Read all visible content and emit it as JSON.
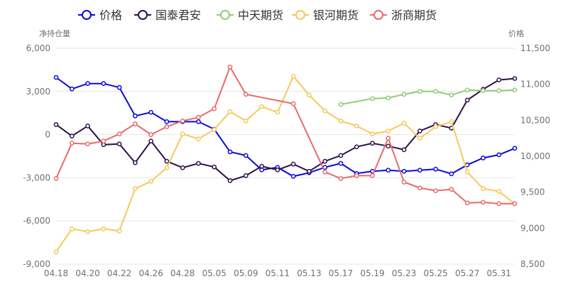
{
  "chart_data": {
    "type": "line",
    "left_axis_title": "净持仓量",
    "right_axis_title": "价格",
    "left_ylim": [
      -9000,
      6000
    ],
    "left_ticks": [
      "-9,000",
      "-6,000",
      "-3,000",
      "0",
      "3,000",
      "6,000"
    ],
    "left_tick_values": [
      -9000,
      -6000,
      -3000,
      0,
      3000,
      6000
    ],
    "right_ylim": [
      8500,
      11500
    ],
    "right_ticks": [
      "8,500",
      "9,000",
      "9,500",
      "10,000",
      "10,500",
      "11,000",
      "11,500"
    ],
    "right_tick_values": [
      8500,
      9000,
      9500,
      10000,
      10500,
      11000,
      11500
    ],
    "x": [
      "04.18",
      "04.19",
      "04.20",
      "04.21",
      "04.22",
      "04.25",
      "04.26",
      "04.27",
      "04.28",
      "04.29",
      "05.05",
      "05.06",
      "05.09",
      "05.10",
      "05.11",
      "05.12",
      "05.13",
      "05.16",
      "05.17",
      "05.18",
      "05.19",
      "05.20",
      "05.23",
      "05.24",
      "05.25",
      "05.26",
      "05.27",
      "05.30",
      "05.31",
      "06.01"
    ],
    "x_tick_labels": [
      "04.18",
      "04.20",
      "04.22",
      "04.26",
      "04.28",
      "05.05",
      "05.09",
      "05.11",
      "05.13",
      "05.17",
      "05.19",
      "05.23",
      "05.25",
      "05.27",
      "05.31"
    ],
    "x_tick_indices": [
      0,
      2,
      4,
      6,
      8,
      10,
      12,
      14,
      16,
      18,
      20,
      22,
      24,
      26,
      28
    ],
    "grid": true,
    "legend_position": "top",
    "series": [
      {
        "name": "价格",
        "axis": "right",
        "color": "#0a0ad8",
        "values": [
          11095,
          10935,
          11010,
          11010,
          10955,
          10560,
          10610,
          10480,
          10480,
          10480,
          10375,
          10060,
          10010,
          9810,
          9845,
          9720,
          9770,
          9845,
          9900,
          9760,
          9790,
          9805,
          9790,
          9805,
          9820,
          9755,
          9880,
          9975,
          10020,
          10110
        ]
      },
      {
        "name": "国泰君安",
        "axis": "left",
        "color": "#2e1049",
        "values": [
          700,
          -100,
          600,
          -700,
          -650,
          -1950,
          -450,
          -1850,
          -2300,
          -2000,
          -2250,
          -3200,
          -2850,
          -2200,
          -2450,
          -2050,
          -2550,
          -1850,
          -1450,
          -850,
          -600,
          -800,
          -1050,
          250,
          700,
          450,
          2400,
          3150,
          3800,
          3900
        ]
      },
      {
        "name": "中天期货",
        "axis": "left",
        "color": "#91cc75",
        "values": [
          null,
          null,
          null,
          null,
          null,
          null,
          null,
          null,
          null,
          null,
          null,
          null,
          null,
          null,
          null,
          null,
          null,
          null,
          2100,
          null,
          2500,
          2550,
          2800,
          3000,
          3000,
          2750,
          3100,
          3050,
          3050,
          3100
        ]
      },
      {
        "name": "银河期货",
        "axis": "left",
        "color": "#f7c85a",
        "values": [
          -8150,
          -6550,
          -6750,
          -6550,
          -6700,
          -3750,
          -3250,
          -2300,
          50,
          -300,
          350,
          1600,
          950,
          1950,
          1550,
          4050,
          2750,
          1650,
          950,
          600,
          50,
          250,
          800,
          -250,
          550,
          900,
          -2600,
          -3750,
          -3950,
          -4800
        ]
      },
      {
        "name": "浙商期货",
        "axis": "left",
        "color": "#e66b6b",
        "values": [
          -3050,
          -600,
          -650,
          -450,
          50,
          750,
          0,
          550,
          950,
          1200,
          1800,
          4700,
          2800,
          null,
          null,
          2150,
          null,
          -2600,
          -3050,
          -2850,
          -2850,
          -250,
          -3300,
          -3700,
          -3900,
          -3800,
          -4750,
          -4700,
          -4800,
          -4800
        ]
      }
    ]
  }
}
